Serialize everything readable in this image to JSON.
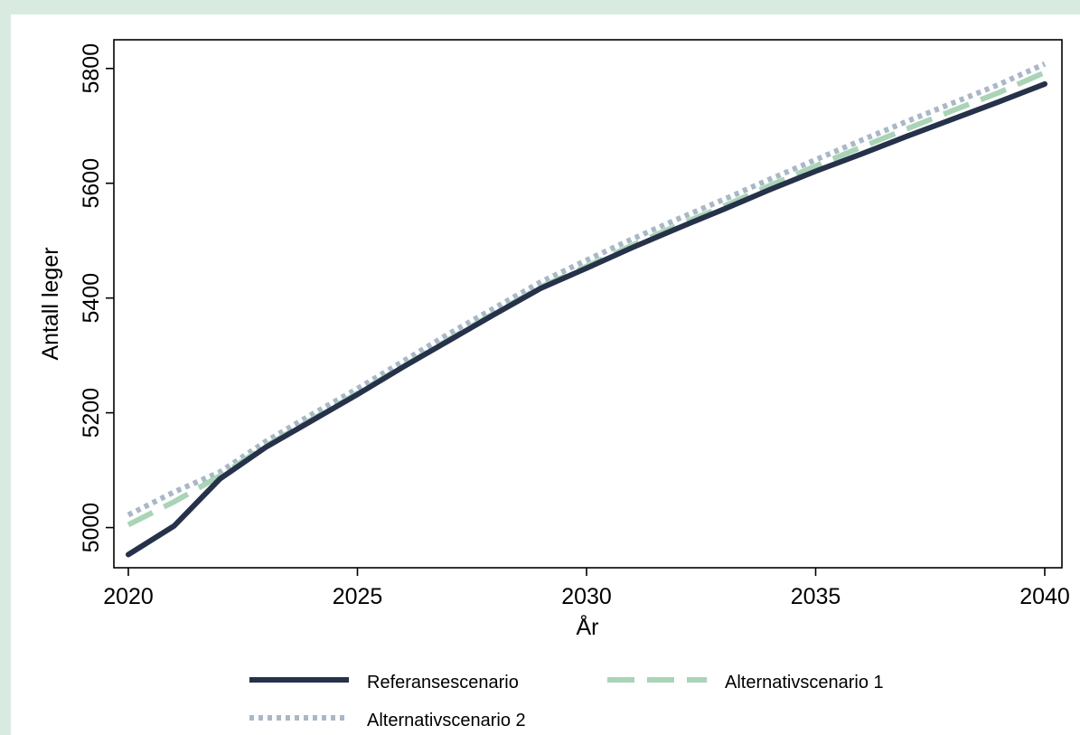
{
  "colors": {
    "page_background": "#d9ebe1",
    "plot_background": "#ffffff",
    "axis": "#000000"
  },
  "chart_data": {
    "type": "line",
    "xlabel": "År",
    "ylabel": "Antall leger",
    "xlim": [
      2020,
      2040
    ],
    "ylim": [
      4930,
      5850
    ],
    "x_ticks": [
      2020,
      2025,
      2030,
      2035,
      2040
    ],
    "y_ticks": [
      5000,
      5200,
      5400,
      5600,
      5800
    ],
    "grid": false,
    "legend_position": "bottom",
    "x": [
      2020,
      2021,
      2022,
      2023,
      2024,
      2025,
      2026,
      2027,
      2028,
      2029,
      2030,
      2031,
      2032,
      2033,
      2034,
      2035,
      2036,
      2037,
      2038,
      2039,
      2040
    ],
    "series": [
      {
        "name": "Referansescenario",
        "color": "#26314a",
        "style": "solid",
        "values": [
          4953,
          5003,
          5085,
          5140,
          5186,
          5232,
          5280,
          5326,
          5372,
          5417,
          5452,
          5488,
          5522,
          5555,
          5589,
          5621,
          5651,
          5682,
          5712,
          5742,
          5773
        ]
      },
      {
        "name": "Alternativscenario 1",
        "color": "#a9d4b6",
        "style": "dashed",
        "values": [
          5005,
          5045,
          5090,
          5142,
          5188,
          5234,
          5281,
          5328,
          5374,
          5419,
          5455,
          5492,
          5527,
          5560,
          5596,
          5630,
          5663,
          5695,
          5727,
          5758,
          5793
        ]
      },
      {
        "name": "Alternativscenario 2",
        "color": "#a9b8c8",
        "style": "dotted",
        "values": [
          5022,
          5062,
          5097,
          5150,
          5197,
          5242,
          5290,
          5338,
          5383,
          5428,
          5466,
          5503,
          5538,
          5572,
          5607,
          5641,
          5675,
          5708,
          5740,
          5772,
          5808
        ]
      }
    ]
  }
}
